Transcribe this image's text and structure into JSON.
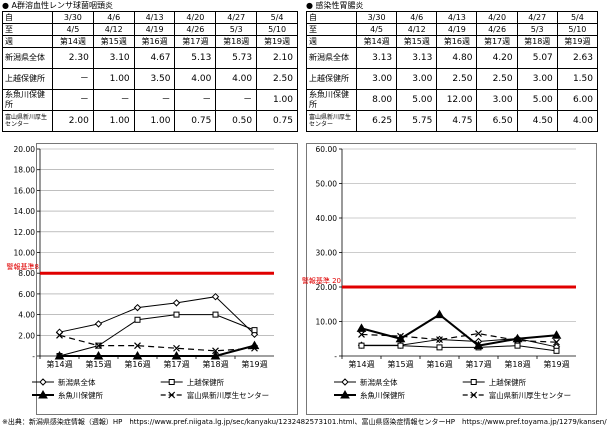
{
  "left": {
    "title": "● A群溶血性レンサ球菌咽頭炎",
    "table": {
      "head_labels": [
        "自",
        "至",
        "週"
      ],
      "start_dates": [
        "3/30",
        "4/6",
        "4/13",
        "4/20",
        "4/27",
        "5/4"
      ],
      "end_dates": [
        "4/5",
        "4/12",
        "4/19",
        "4/26",
        "5/3",
        "5/10"
      ],
      "weeks": [
        "第14週",
        "第15週",
        "第16週",
        "第17週",
        "第18週",
        "第19週"
      ],
      "rows": [
        {
          "label": "新潟県全体",
          "values": [
            "2.30",
            "3.10",
            "4.67",
            "5.13",
            "5.73",
            "2.10"
          ]
        },
        {
          "label": "上越保健所",
          "values": [
            "－",
            "1.00",
            "3.50",
            "4.00",
            "4.00",
            "2.50"
          ]
        },
        {
          "label": "糸魚川保健所",
          "values": [
            "－",
            "－",
            "－",
            "－",
            "－",
            "1.00"
          ]
        },
        {
          "label": "富山県新川厚生センター",
          "values": [
            "2.00",
            "1.00",
            "1.00",
            "0.75",
            "0.50",
            "0.75"
          ]
        }
      ]
    }
  },
  "right": {
    "title": "● 感染性胃腸炎",
    "table": {
      "head_labels": [
        "自",
        "至",
        "週"
      ],
      "start_dates": [
        "3/30",
        "4/6",
        "4/13",
        "4/20",
        "4/27",
        "5/4"
      ],
      "end_dates": [
        "4/5",
        "4/12",
        "4/19",
        "4/26",
        "5/3",
        "5/10"
      ],
      "weeks": [
        "第14週",
        "第15週",
        "第16週",
        "第17週",
        "第18週",
        "第19週"
      ],
      "rows": [
        {
          "label": "新潟県全体",
          "values": [
            "3.13",
            "3.13",
            "4.80",
            "4.20",
            "5.07",
            "2.63"
          ]
        },
        {
          "label": "上越保健所",
          "values": [
            "3.00",
            "3.00",
            "2.50",
            "2.50",
            "3.00",
            "1.50"
          ]
        },
        {
          "label": "糸魚川保健所",
          "values": [
            "8.00",
            "5.00",
            "12.00",
            "3.00",
            "5.00",
            "6.00"
          ]
        },
        {
          "label": "富山県新川厚生センター",
          "values": [
            "6.25",
            "5.75",
            "4.75",
            "6.50",
            "4.50",
            "4.00"
          ]
        }
      ]
    }
  },
  "chart_data": [
    {
      "type": "line",
      "x": [
        "第14週",
        "第15週",
        "第16週",
        "第17週",
        "第18週",
        "第19週"
      ],
      "ylim": [
        0,
        20
      ],
      "yticks": [
        "-",
        "2.00",
        "4.00",
        "6.00",
        "8.00",
        "10.00",
        "12.00",
        "14.00",
        "16.00",
        "18.00",
        "20.00"
      ],
      "threshold": {
        "label": "警報基準8",
        "value": 8,
        "color": "#e00000"
      },
      "series": [
        {
          "name": "新潟県全体",
          "marker": "diamond",
          "color": "#000000",
          "values": [
            2.3,
            3.1,
            4.67,
            5.13,
            5.73,
            2.1
          ]
        },
        {
          "name": "上越保健所",
          "marker": "square",
          "color": "#000000",
          "values": [
            0,
            1.0,
            3.5,
            4.0,
            4.0,
            2.5
          ]
        },
        {
          "name": "糸魚川保健所",
          "marker": "triangle",
          "color": "#000000",
          "values": [
            0,
            0,
            0,
            0,
            0,
            1.0
          ]
        },
        {
          "name": "富山県新川厚生センター",
          "marker": "x",
          "color": "#000000",
          "values": [
            2.0,
            1.0,
            1.0,
            0.75,
            0.5,
            0.75
          ]
        }
      ],
      "legend": [
        "新潟県全体",
        "上越保健所",
        "糸魚川保健所",
        "富山県新川厚生センター"
      ]
    },
    {
      "type": "line",
      "x": [
        "第14週",
        "第15週",
        "第16週",
        "第17週",
        "第18週",
        "第19週"
      ],
      "ylim": [
        0,
        60
      ],
      "yticks": [
        "-",
        "10.00",
        "20.00",
        "30.00",
        "40.00",
        "50.00",
        "60.00"
      ],
      "threshold": {
        "label": "警報基準 20",
        "value": 20,
        "color": "#e00000"
      },
      "series": [
        {
          "name": "新潟県全体",
          "marker": "diamond",
          "color": "#000000",
          "values": [
            3.13,
            3.13,
            4.8,
            4.2,
            5.07,
            2.63
          ]
        },
        {
          "name": "上越保健所",
          "marker": "square",
          "color": "#000000",
          "values": [
            3.0,
            3.0,
            2.5,
            2.5,
            3.0,
            1.5
          ]
        },
        {
          "name": "糸魚川保健所",
          "marker": "triangle",
          "color": "#000000",
          "values": [
            8.0,
            5.0,
            12.0,
            3.0,
            5.0,
            6.0
          ]
        },
        {
          "name": "富山県新川厚生センター",
          "marker": "x",
          "color": "#000000",
          "values": [
            6.25,
            5.75,
            4.75,
            6.5,
            4.5,
            4.0
          ]
        }
      ],
      "legend": [
        "新潟県全体",
        "上越保健所",
        "糸魚川保健所",
        "富山県新川厚生センター"
      ]
    }
  ],
  "footer": "※出典：新潟県感染症情報（週報）HP　https://www.pref.niigata.lg.jp/sec/kanyaku/1232482573101.html、富山県感染症情報センターHP　https://www.pref.toyama.jp/1279/kansen/"
}
